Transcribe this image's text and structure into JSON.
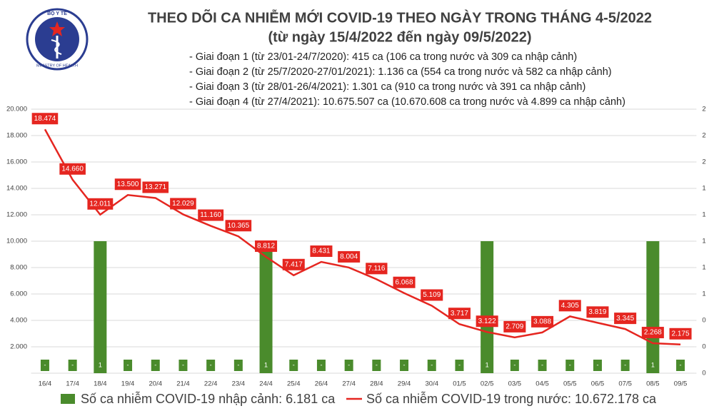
{
  "logo": {
    "top": "BỘ Y TẾ",
    "bottom": "MINISTRY OF HEALTH"
  },
  "chart_data": {
    "type": "combo",
    "title": "THEO DÕI CA NHIỄM MỚI COVID-19 THEO NGÀY TRONG THÁNG 4-5/2022",
    "subtitle": "(từ ngày 15/4/2022 đến ngày 09/5/2022)",
    "notes": [
      "- Giai đoạn 1 (từ 23/01-24/7/2020): 415 ca (106 ca trong nước và 309 ca nhập cảnh)",
      "- Giai đoạn 2 (từ 25/7/2020-27/01/2021): 1.136 ca (554 ca trong nước và 582 ca nhập cảnh)",
      "- Giai đoạn 3 (từ 28/01-26/4/2021): 1.301 ca (910 ca trong nước và 391 ca nhập cảnh)",
      "- Giai đoạn 4 (từ 27/4/2021): 10.675.507 ca (10.670.608 ca trong nước và 4.899 ca nhập cảnh)"
    ],
    "categories": [
      "16/4",
      "17/4",
      "18/4",
      "19/4",
      "20/4",
      "21/4",
      "22/4",
      "23/4",
      "24/4",
      "25/4",
      "26/4",
      "27/4",
      "28/4",
      "29/4",
      "30/4",
      "01/5",
      "02/5",
      "03/5",
      "04/5",
      "05/5",
      "06/5",
      "07/5",
      "08/5",
      "09/5"
    ],
    "series": [
      {
        "name": "Số ca nhiễm COVID-19 nhập cảnh: 6.181 ca",
        "type": "bar",
        "axis": "y2",
        "color": "#4a8b2c",
        "values": [
          0,
          0,
          1,
          0,
          0,
          0,
          0,
          0,
          1,
          0,
          0,
          0,
          0,
          0,
          0,
          0,
          1,
          0,
          0,
          0,
          0,
          0,
          1,
          0
        ],
        "value_labels": [
          "-",
          "-",
          "1",
          "-",
          "-",
          "-",
          "-",
          "-",
          "1",
          "-",
          "-",
          "-",
          "-",
          "-",
          "-",
          "-",
          "1",
          "-",
          "-",
          "-",
          "-",
          "-",
          "1",
          "-"
        ]
      },
      {
        "name": "Số ca nhiễm COVID-19 trong nước: 10.672.178 ca",
        "type": "line",
        "color": "#e52620",
        "values": [
          18474,
          14660,
          12011,
          13500,
          13271,
          12029,
          11160,
          10365,
          8812,
          7417,
          8431,
          8004,
          7116,
          6068,
          5109,
          3717,
          3122,
          2709,
          3088,
          4305,
          3819,
          3345,
          2268,
          2175
        ],
        "value_labels": [
          "18.474",
          "14.660",
          "12.011",
          "13.500",
          "13.271",
          "12.029",
          "11.160",
          "10.365",
          "8.812",
          "7.417",
          "8.431",
          "8.004",
          "7.116",
          "6.068",
          "5.109",
          "3.717",
          "3.122",
          "2.709",
          "3.088",
          "4.305",
          "3.819",
          "3.345",
          "2.268",
          "2.175"
        ]
      }
    ],
    "ylim": [
      0,
      20000
    ],
    "yticks": [
      {
        "value": 2000,
        "label": "2.000"
      },
      {
        "value": 4000,
        "label": "4.000"
      },
      {
        "value": 6000,
        "label": "6.000"
      },
      {
        "value": 8000,
        "label": "8.000"
      },
      {
        "value": 10000,
        "label": "10.000"
      },
      {
        "value": 12000,
        "label": "12.000"
      },
      {
        "value": 14000,
        "label": "14.000"
      },
      {
        "value": 16000,
        "label": "16.000"
      },
      {
        "value": 18000,
        "label": "18.000"
      },
      {
        "value": 20000,
        "label": "20.000"
      }
    ],
    "y2lim": [
      0,
      2
    ],
    "y2ticks": [
      0,
      {
        "value": 0.2,
        "label": "0"
      },
      {
        "value": 0.4,
        "label": "0"
      },
      {
        "value": 0.6,
        "label": "1"
      },
      {
        "value": 0.8,
        "label": "1"
      },
      1,
      {
        "value": 1.2,
        "label": "1"
      },
      {
        "value": 1.4,
        "label": "1"
      },
      {
        "value": 1.6,
        "label": "2"
      },
      {
        "value": 1.8,
        "label": "2"
      },
      2
    ],
    "grid": true
  }
}
